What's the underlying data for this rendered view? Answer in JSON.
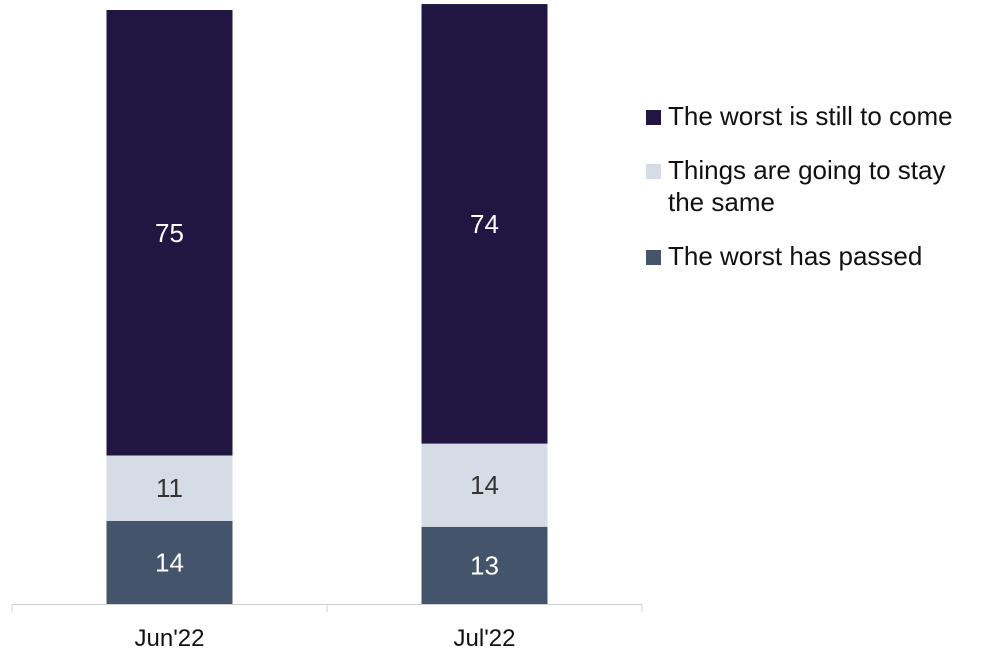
{
  "chart_data": {
    "type": "bar",
    "stacked": true,
    "categories": [
      "Jun'22",
      "Jul'22"
    ],
    "series": [
      {
        "name": "The worst has passed",
        "values": [
          14,
          13
        ],
        "color": "#44546A",
        "label_color": "#ffffff"
      },
      {
        "name": "Things are going to stay the same",
        "values": [
          11,
          14
        ],
        "color": "#D6DCE5",
        "label_color": "#333333"
      },
      {
        "name": "The worst is still to come",
        "values": [
          75,
          74
        ],
        "color": "#201641",
        "label_color": "#ffffff"
      }
    ],
    "legend_order": [
      2,
      1,
      0
    ],
    "title": "",
    "xlabel": "",
    "ylabel": "",
    "ylim": [
      0,
      100
    ],
    "grid": false,
    "legend_position": "right"
  }
}
